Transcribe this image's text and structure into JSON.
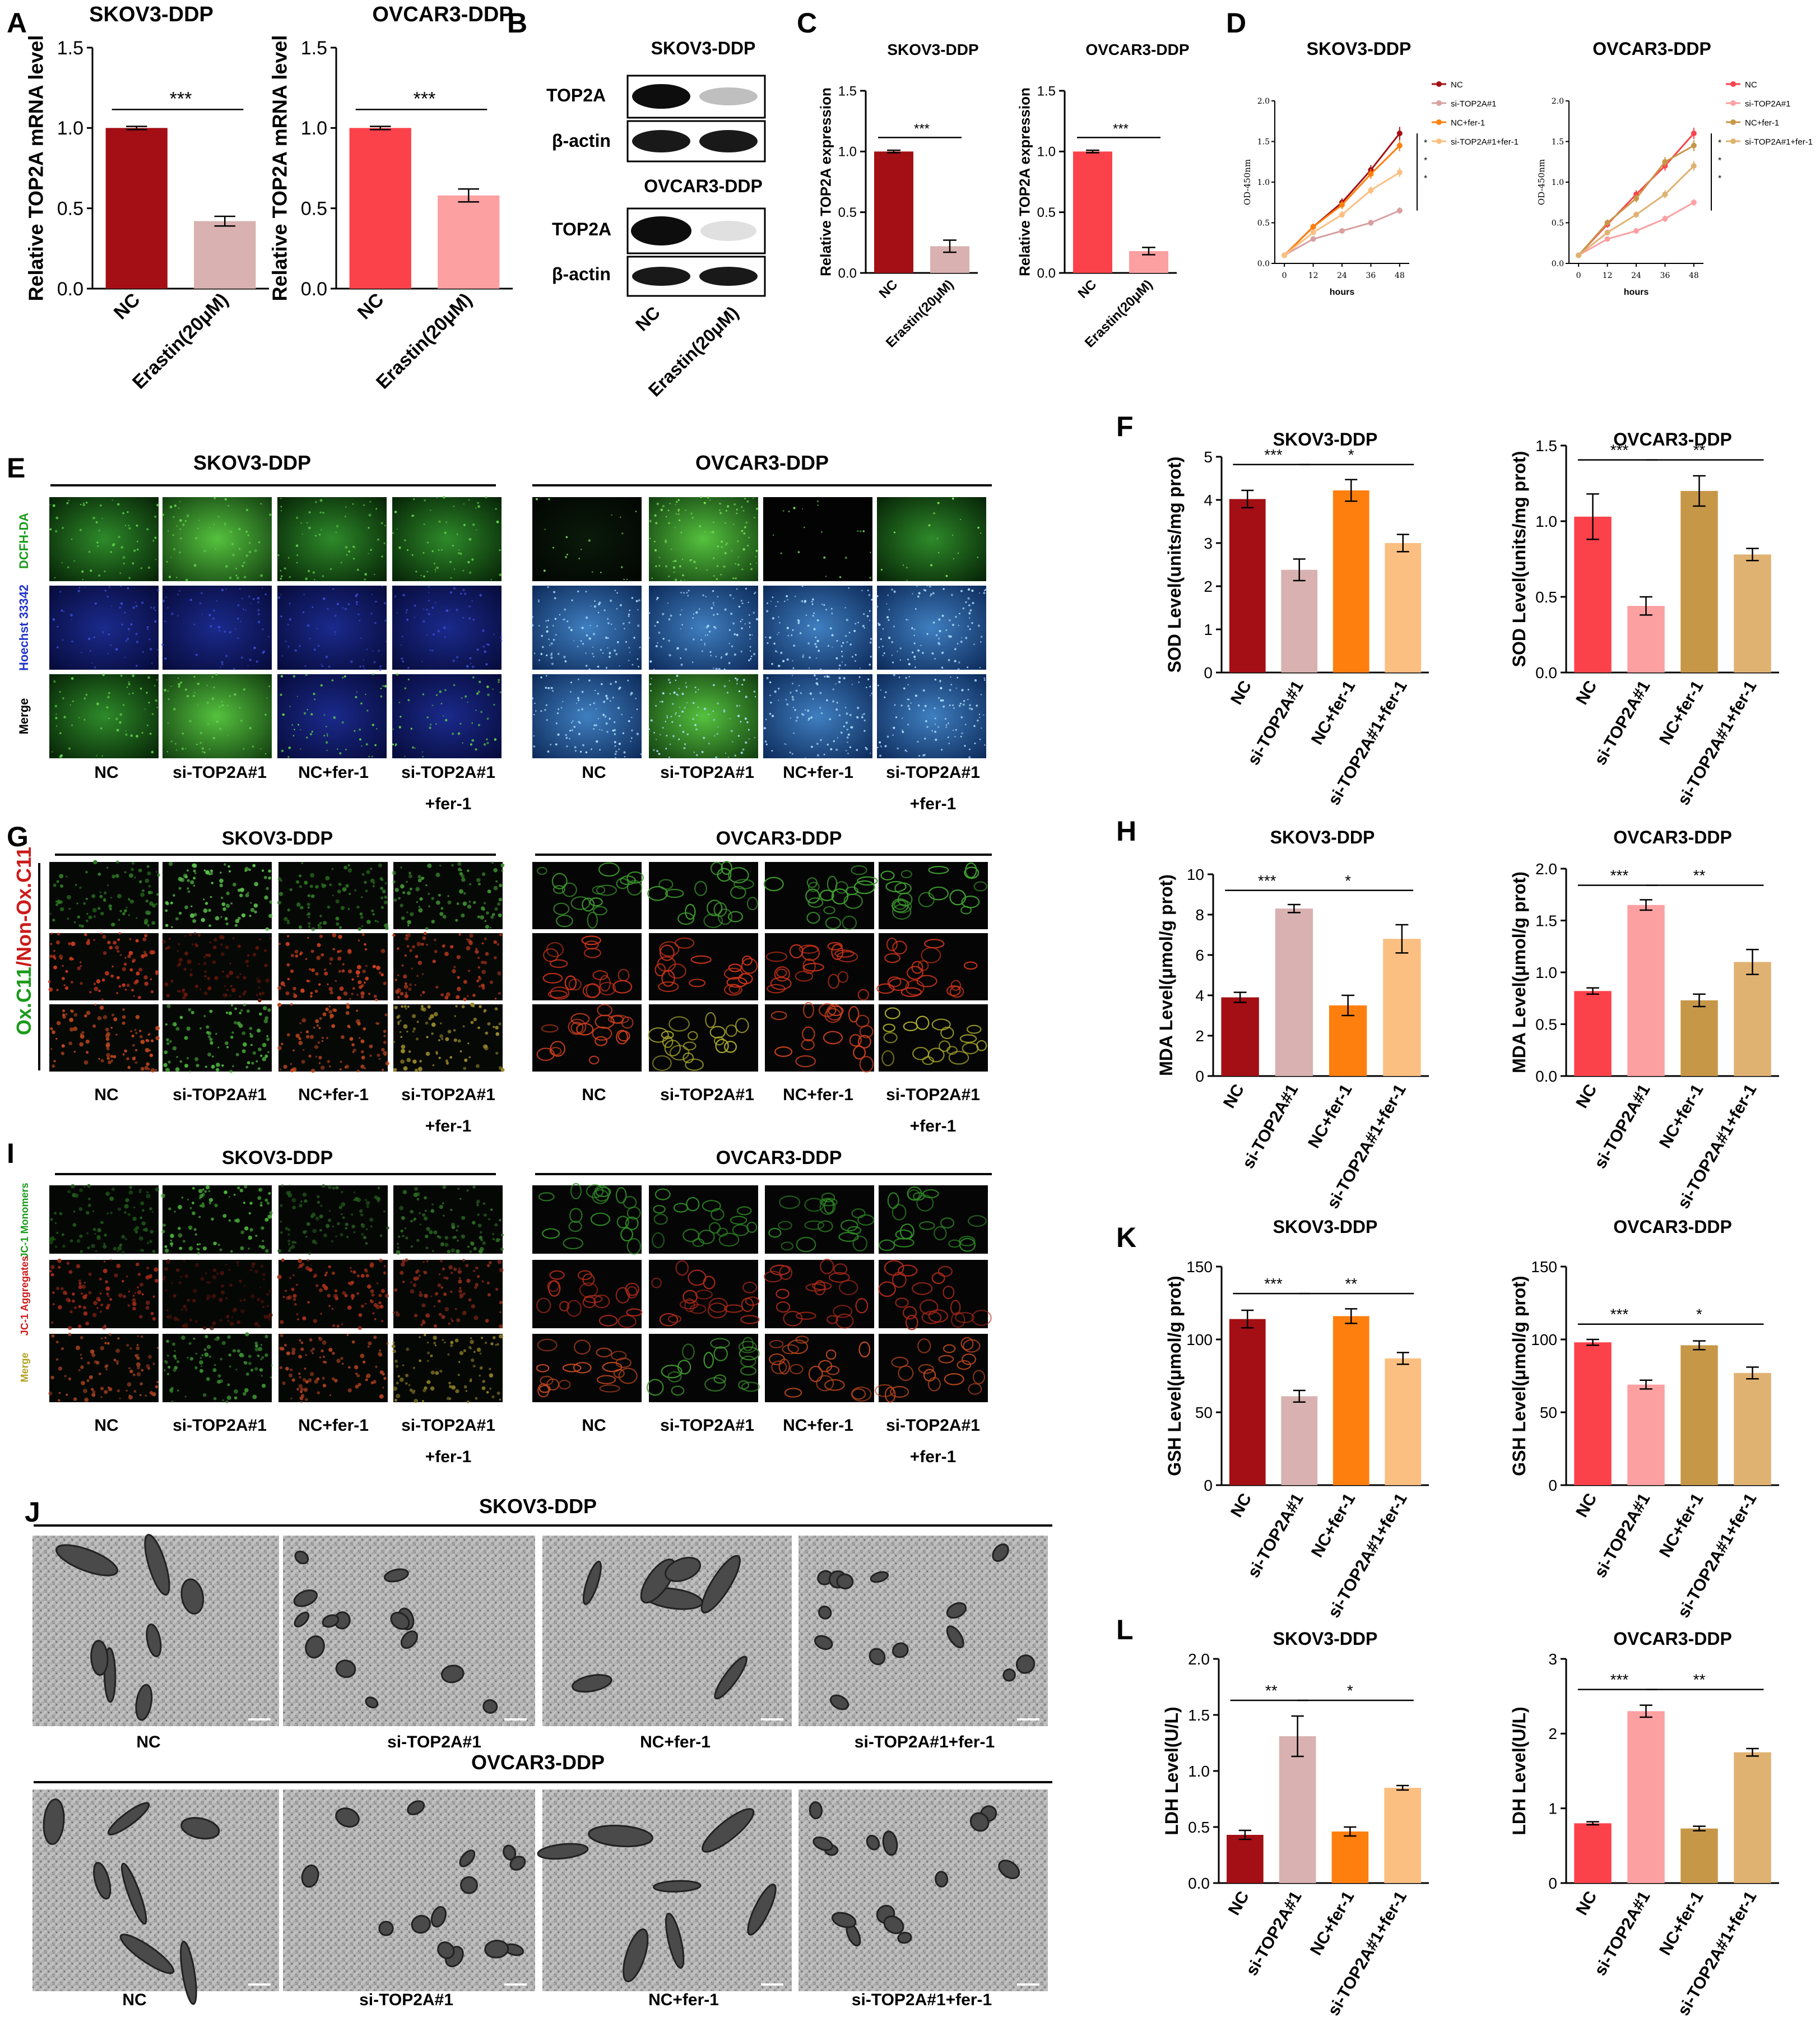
{
  "panel_letters": {
    "A": "A",
    "B": "B",
    "C": "C",
    "D": "D",
    "E": "E",
    "F": "F",
    "G": "G",
    "H": "H",
    "I": "I",
    "J": "J",
    "K": "K",
    "L": "L"
  },
  "lines": {
    "skov": "SKOV3-DDP",
    "ovcar": "OVCAR3-DDP"
  },
  "groups": {
    "nc": "NC",
    "si": "si-TOP2A#1",
    "ncf": "NC+fer-1",
    "sif": "si-TOP2A#1+fer-1",
    "sif1": "si-TOP2A#1",
    "sif2": "+fer-1",
    "erastin": "Erastin(20μM)"
  },
  "colors": {
    "skov_nc": "#a30f14",
    "skov_si": "#d8b1b0",
    "orange": "#ff7f0e",
    "light_orange": "#fcbf82",
    "ovcar_nc": "#fb424b",
    "ovcar_si": "#fca0a2",
    "tan": "#c79748",
    "light_tan": "#e0b272"
  },
  "blot": {
    "title_skov": "SKOV3-DDP",
    "title_ovcar": "OVCAR3-DDP",
    "top2a": "TOP2A",
    "actin": "β-actin",
    "lane_nc": "NC",
    "lane_erastin": "Erastin(20μM)",
    "skov_top2a_intensity": [
      0.95,
      0.25
    ],
    "ovcar_top2a_intensity": [
      0.95,
      0.12
    ],
    "actin_intensity": [
      0.9,
      0.9
    ]
  },
  "micro": {
    "e_labels": [
      "DCFH-DA",
      "Hoechst 33342",
      "Merge"
    ],
    "g_label_a": "Ox.C11",
    "g_label_b": "/Non-Ox.C11",
    "i_labels": [
      "JC-1 Monomers",
      "JC-1 Aggregates",
      "Merge"
    ]
  },
  "chart_data": [
    {
      "id": "A1",
      "type": "bar",
      "title": "SKOV3-DDP",
      "categories": [
        "NC",
        "Erastin(20μM)"
      ],
      "values": [
        1.0,
        0.42
      ],
      "errors": [
        0.01,
        0.03
      ],
      "ylabel": "Relative TOP2A mRNA level",
      "ylim": [
        0,
        1.5
      ],
      "yticks": [
        0.0,
        0.5,
        1.0,
        1.5
      ],
      "colors": [
        "#a30f14",
        "#d8b1b0"
      ],
      "sig": [
        {
          "from": 0,
          "to": 1,
          "label": "***"
        }
      ]
    },
    {
      "id": "A2",
      "type": "bar",
      "title": "OVCAR3-DDP",
      "categories": [
        "NC",
        "Erastin(20μM)"
      ],
      "values": [
        1.0,
        0.58
      ],
      "errors": [
        0.01,
        0.04
      ],
      "ylabel": "Relative TOP2A mRNA level",
      "ylim": [
        0,
        1.5
      ],
      "yticks": [
        0.0,
        0.5,
        1.0,
        1.5
      ],
      "colors": [
        "#fb424b",
        "#fca0a2"
      ],
      "sig": [
        {
          "from": 0,
          "to": 1,
          "label": "***"
        }
      ]
    },
    {
      "id": "C1",
      "type": "bar",
      "title": "SKOV3-DDP",
      "categories": [
        "NC",
        "Erastin(20μM)"
      ],
      "values": [
        1.0,
        0.22
      ],
      "errors": [
        0.01,
        0.05
      ],
      "ylabel": "Relative TOP2A expression",
      "ylim": [
        0,
        1.5
      ],
      "yticks": [
        0.0,
        0.5,
        1.0,
        1.5
      ],
      "colors": [
        "#a30f14",
        "#d8b1b0"
      ],
      "sig": [
        {
          "from": 0,
          "to": 1,
          "label": "***"
        }
      ]
    },
    {
      "id": "C2",
      "type": "bar",
      "title": "OVCAR3-DDP",
      "categories": [
        "NC",
        "Erastin(20μM)"
      ],
      "values": [
        1.0,
        0.18
      ],
      "errors": [
        0.01,
        0.03
      ],
      "ylabel": "Relative TOP2A expression",
      "ylim": [
        0,
        1.5
      ],
      "yticks": [
        0.0,
        0.5,
        1.0,
        1.5
      ],
      "colors": [
        "#fb424b",
        "#fca0a2"
      ],
      "sig": [
        {
          "from": 0,
          "to": 1,
          "label": "***"
        }
      ]
    },
    {
      "id": "D1",
      "type": "line",
      "title": "SKOV3-DDP",
      "x": [
        0,
        12,
        24,
        36,
        48
      ],
      "xlabel": "hours",
      "ylabel": "OD-450nm",
      "ylim": [
        0,
        2.0
      ],
      "yticks": [
        0.0,
        0.5,
        1.0,
        1.5,
        2.0
      ],
      "series": [
        {
          "name": "NC",
          "color": "#a30f14",
          "values": [
            0.1,
            0.45,
            0.75,
            1.15,
            1.6
          ],
          "errors": [
            0.02,
            0.04,
            0.05,
            0.06,
            0.08
          ]
        },
        {
          "name": "si-TOP2A#1",
          "color": "#d8a0a0",
          "values": [
            0.1,
            0.3,
            0.4,
            0.5,
            0.65
          ],
          "errors": [
            0.02,
            0.03,
            0.03,
            0.04,
            0.04
          ]
        },
        {
          "name": "NC+fer-1",
          "color": "#ff7f0e",
          "values": [
            0.1,
            0.45,
            0.72,
            1.1,
            1.45
          ],
          "errors": [
            0.02,
            0.04,
            0.05,
            0.06,
            0.07
          ]
        },
        {
          "name": "si-TOP2A#1+fer-1",
          "color": "#fcbf82",
          "values": [
            0.1,
            0.38,
            0.6,
            0.9,
            1.12
          ],
          "errors": [
            0.02,
            0.03,
            0.04,
            0.05,
            0.06
          ]
        }
      ]
    },
    {
      "id": "D2",
      "type": "line",
      "title": "OVCAR3-DDP",
      "x": [
        0,
        12,
        24,
        36,
        48
      ],
      "xlabel": "hours",
      "ylabel": "OD-450nm",
      "ylim": [
        0,
        2.0
      ],
      "yticks": [
        0.0,
        0.5,
        1.0,
        1.5,
        2.0
      ],
      "series": [
        {
          "name": "NC",
          "color": "#fb424b",
          "values": [
            0.1,
            0.48,
            0.85,
            1.2,
            1.6
          ],
          "errors": [
            0.02,
            0.04,
            0.05,
            0.06,
            0.07
          ]
        },
        {
          "name": "si-TOP2A#1",
          "color": "#fca0a2",
          "values": [
            0.1,
            0.3,
            0.4,
            0.55,
            0.75
          ],
          "errors": [
            0.02,
            0.03,
            0.03,
            0.04,
            0.04
          ]
        },
        {
          "name": "NC+fer-1",
          "color": "#c79748",
          "values": [
            0.1,
            0.5,
            0.8,
            1.25,
            1.45
          ],
          "errors": [
            0.02,
            0.04,
            0.05,
            0.06,
            0.07
          ]
        },
        {
          "name": "si-TOP2A#1+fer-1",
          "color": "#e0b272",
          "values": [
            0.1,
            0.38,
            0.6,
            0.85,
            1.2
          ],
          "errors": [
            0.02,
            0.03,
            0.04,
            0.05,
            0.06
          ]
        }
      ]
    },
    {
      "id": "F1",
      "type": "bar",
      "title": "SKOV3-DDP",
      "categories": [
        "NC",
        "si-TOP2A#1",
        "NC+fer-1",
        "si-TOP2A#1+fer-1"
      ],
      "values": [
        4.02,
        2.38,
        4.22,
        3.0
      ],
      "errors": [
        0.2,
        0.25,
        0.25,
        0.2
      ],
      "ylabel": "SOD Level(units/mg prot)",
      "ylim": [
        0,
        5
      ],
      "yticks": [
        0,
        1,
        2,
        3,
        4,
        5
      ],
      "colors": [
        "#a30f14",
        "#d8b1b0",
        "#ff7f0e",
        "#fcbf82"
      ],
      "sig": [
        {
          "from": 0,
          "to": 1,
          "label": "***"
        },
        {
          "from": 1,
          "to": 3,
          "label": "*"
        }
      ]
    },
    {
      "id": "F2",
      "type": "bar",
      "title": "OVCAR3-DDP",
      "categories": [
        "NC",
        "si-TOP2A#1",
        "NC+fer-1",
        "si-TOP2A#1+fer-1"
      ],
      "values": [
        1.03,
        0.44,
        1.2,
        0.78
      ],
      "errors": [
        0.15,
        0.06,
        0.1,
        0.04
      ],
      "ylabel": "SOD Level(units/mg prot)",
      "ylim": [
        0,
        1.5
      ],
      "yticks": [
        0.0,
        0.5,
        1.0,
        1.5
      ],
      "colors": [
        "#fb424b",
        "#fca0a2",
        "#c79748",
        "#e0b272"
      ],
      "sig": [
        {
          "from": 0,
          "to": 1,
          "label": "***"
        },
        {
          "from": 1,
          "to": 3,
          "label": "**"
        }
      ]
    },
    {
      "id": "H1",
      "type": "bar",
      "title": "SKOV3-DDP",
      "categories": [
        "NC",
        "si-TOP2A#1",
        "NC+fer-1",
        "si-TOP2A#1+fer-1"
      ],
      "values": [
        3.9,
        8.3,
        3.5,
        6.8
      ],
      "errors": [
        0.25,
        0.2,
        0.5,
        0.7
      ],
      "ylabel": "MDA Level(μmol/g prot)",
      "ylim": [
        0,
        10
      ],
      "yticks": [
        0,
        2,
        4,
        6,
        8,
        10
      ],
      "colors": [
        "#a30f14",
        "#d8b1b0",
        "#ff7f0e",
        "#fcbf82"
      ],
      "sig": [
        {
          "from": 0,
          "to": 1,
          "label": "***"
        },
        {
          "from": 1,
          "to": 3,
          "label": "*"
        }
      ]
    },
    {
      "id": "H2",
      "type": "bar",
      "title": "OVCAR3-DDP",
      "categories": [
        "NC",
        "si-TOP2A#1",
        "NC+fer-1",
        "si-TOP2A#1+fer-1"
      ],
      "values": [
        0.82,
        1.65,
        0.73,
        1.1
      ],
      "errors": [
        0.03,
        0.05,
        0.06,
        0.12
      ],
      "ylabel": "MDA Level(μmol/g prot)",
      "ylim": [
        0,
        2.0
      ],
      "yticks": [
        0.0,
        0.5,
        1.0,
        1.5,
        2.0
      ],
      "colors": [
        "#fb424b",
        "#fca0a2",
        "#c79748",
        "#e0b272"
      ],
      "sig": [
        {
          "from": 0,
          "to": 1,
          "label": "***"
        },
        {
          "from": 1,
          "to": 3,
          "label": "**"
        }
      ]
    },
    {
      "id": "K1",
      "type": "bar",
      "title": "SKOV3-DDP",
      "categories": [
        "NC",
        "si-TOP2A#1",
        "NC+fer-1",
        "si-TOP2A#1+fer-1"
      ],
      "values": [
        114,
        61,
        116,
        87
      ],
      "errors": [
        6,
        4,
        5,
        4
      ],
      "ylabel": "GSH Level(μmol/g prot)",
      "ylim": [
        0,
        150
      ],
      "yticks": [
        0,
        50,
        100,
        150
      ],
      "colors": [
        "#a30f14",
        "#d8b1b0",
        "#ff7f0e",
        "#fcbf82"
      ],
      "sig": [
        {
          "from": 0,
          "to": 1,
          "label": "***"
        },
        {
          "from": 1,
          "to": 3,
          "label": "**"
        }
      ]
    },
    {
      "id": "K2",
      "type": "bar",
      "title": "OVCAR3-DDP",
      "categories": [
        "NC",
        "si-TOP2A#1",
        "NC+fer-1",
        "si-TOP2A#1+fer-1"
      ],
      "values": [
        98,
        69,
        96,
        77
      ],
      "errors": [
        2,
        3,
        3,
        4
      ],
      "ylabel": "GSH Level(μmol/g prot)",
      "ylim": [
        0,
        150
      ],
      "yticks": [
        0,
        50,
        100,
        150
      ],
      "colors": [
        "#fb424b",
        "#fca0a2",
        "#c79748",
        "#e0b272"
      ],
      "sig": [
        {
          "from": 0,
          "to": 1,
          "label": "***"
        },
        {
          "from": 1,
          "to": 3,
          "label": "*"
        }
      ]
    },
    {
      "id": "L1",
      "type": "bar",
      "title": "SKOV3-DDP",
      "categories": [
        "NC",
        "si-TOP2A#1",
        "NC+fer-1",
        "si-TOP2A#1+fer-1"
      ],
      "values": [
        0.43,
        1.31,
        0.46,
        0.85
      ],
      "errors": [
        0.04,
        0.18,
        0.04,
        0.02
      ],
      "ylabel": "LDH Level(U/L)",
      "ylim": [
        0,
        2.0
      ],
      "yticks": [
        0.0,
        0.5,
        1.0,
        1.5,
        2.0
      ],
      "colors": [
        "#a30f14",
        "#d8b1b0",
        "#ff7f0e",
        "#fcbf82"
      ],
      "sig": [
        {
          "from": 0,
          "to": 1,
          "label": "**"
        },
        {
          "from": 1,
          "to": 3,
          "label": "*"
        }
      ]
    },
    {
      "id": "L2",
      "type": "bar",
      "title": "OVCAR3-DDP",
      "categories": [
        "NC",
        "si-TOP2A#1",
        "NC+fer-1",
        "si-TOP2A#1+fer-1"
      ],
      "values": [
        0.8,
        2.3,
        0.73,
        1.75
      ],
      "errors": [
        0.02,
        0.08,
        0.03,
        0.05
      ],
      "ylabel": "LDH Level(U/L)",
      "ylim": [
        0,
        3
      ],
      "yticks": [
        0,
        1,
        2,
        3
      ],
      "colors": [
        "#fb424b",
        "#fca0a2",
        "#c79748",
        "#e0b272"
      ],
      "sig": [
        {
          "from": 0,
          "to": 1,
          "label": "***"
        },
        {
          "from": 1,
          "to": 3,
          "label": "**"
        }
      ]
    }
  ]
}
